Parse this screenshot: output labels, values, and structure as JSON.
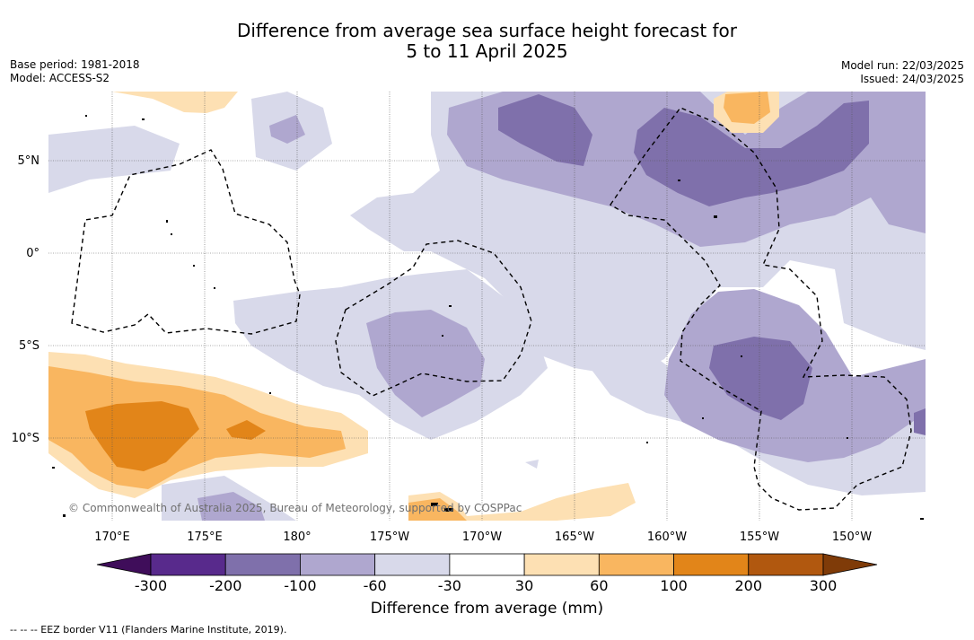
{
  "title_line1": "Difference from average sea surface height forecast for",
  "title_line2": "5 to 11 April 2025",
  "meta_left": [
    "Base period: 1981-2018",
    "Model: ACCESS-S2"
  ],
  "meta_right": [
    "Model run: 22/03/2025",
    "Issued: 24/03/2025"
  ],
  "map": {
    "lon_labels": [
      "170°E",
      "175°E",
      "180°",
      "175°W",
      "170°W",
      "165°W",
      "160°W",
      "155°W",
      "150°W"
    ],
    "lat_labels": [
      "5°N",
      "0°",
      "5°S",
      "10°S"
    ],
    "watermark": "© Commonwealth of Australia 2025, Bureau of Meteorology, supported by COSPPac"
  },
  "colorbar": {
    "ticks": [
      "-300",
      "-200",
      "-100",
      "-60",
      "-30",
      "30",
      "60",
      "100",
      "200",
      "300"
    ],
    "colors": [
      "#3f0d5a",
      "#582a8c",
      "#7f70ab",
      "#afa7cf",
      "#d8d9ea",
      "#ffffff",
      "#fde0b3",
      "#f9b660",
      "#e28519",
      "#b1580f",
      "#7f3b08"
    ],
    "label": "Difference from average (mm)"
  },
  "footnote": "--  --  -- EEZ border V11 (Flanders Marine Institute, 2019)."
}
